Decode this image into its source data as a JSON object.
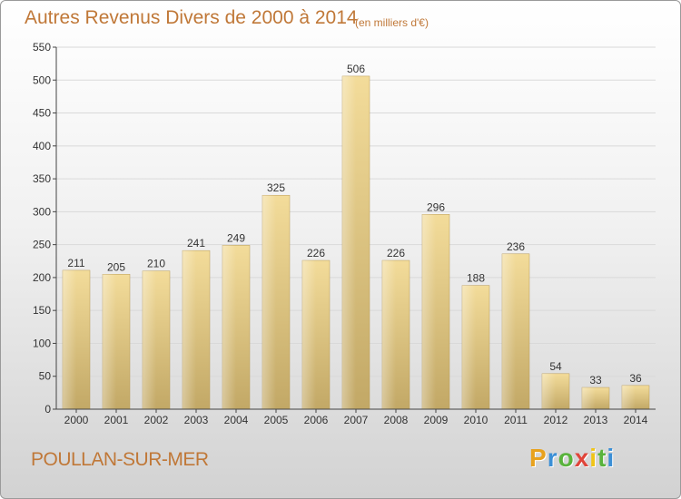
{
  "header": {
    "title": "Autres Revenus Divers de 2000 à 2014",
    "subtitle": "(en milliers d'€)"
  },
  "footer": {
    "commune": "POULLAN-SUR-MER",
    "brand": "Proxiti",
    "brand_colors": [
      "#e8a21e",
      "#3b8fd6",
      "#59b33c",
      "#e0453a",
      "#f0c419",
      "#59b33c",
      "#3b8fd6"
    ]
  },
  "colors": {
    "text_accent": "#c07838",
    "bar_light": "#f3dc9a",
    "bar_dark": "#c2a866",
    "grid": "#d9d9d9",
    "axis": "#444444"
  },
  "chart_data": {
    "type": "bar",
    "title": "Autres Revenus Divers de 2000 à 2014",
    "subtitle": "(en milliers d'€)",
    "xlabel": "",
    "ylabel": "",
    "categories": [
      "2000",
      "2001",
      "2002",
      "2003",
      "2004",
      "2005",
      "2006",
      "2007",
      "2008",
      "2009",
      "2010",
      "2011",
      "2012",
      "2013",
      "2014"
    ],
    "values": [
      211,
      205,
      210,
      241,
      249,
      325,
      226,
      506,
      226,
      296,
      188,
      236,
      54,
      33,
      36
    ],
    "ylim": [
      0,
      550
    ],
    "yticks": [
      0,
      50,
      100,
      150,
      200,
      250,
      300,
      350,
      400,
      450,
      500,
      550
    ],
    "grid": true,
    "data_labels": true
  }
}
